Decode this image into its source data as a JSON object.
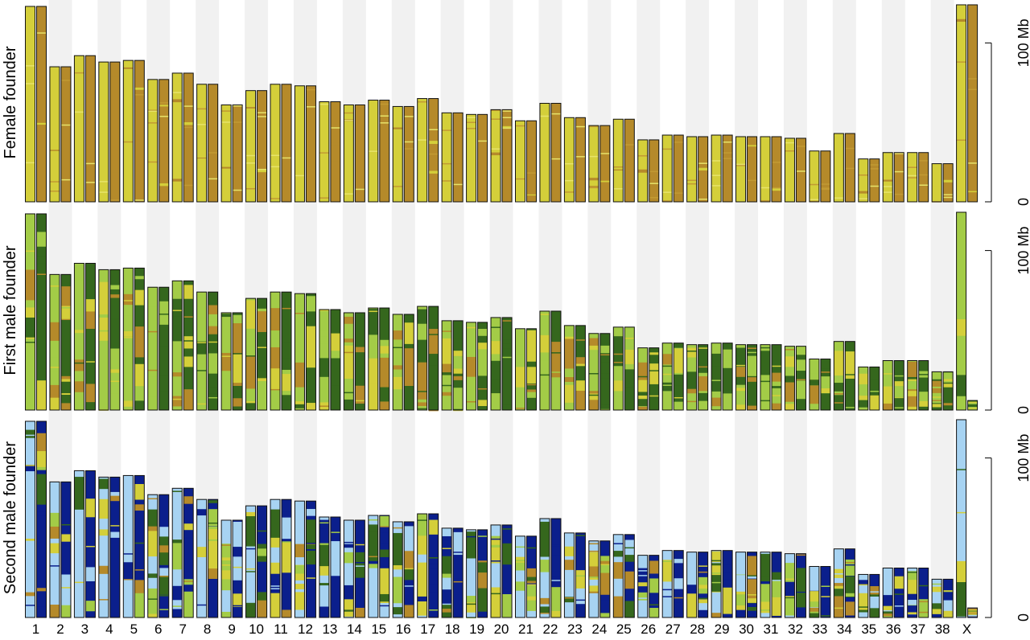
{
  "chart_data": {
    "type": "bar",
    "description_units": "Mb",
    "categories": [
      "1",
      "2",
      "3",
      "4",
      "5",
      "6",
      "7",
      "8",
      "9",
      "10",
      "11",
      "12",
      "13",
      "14",
      "15",
      "16",
      "17",
      "18",
      "19",
      "20",
      "21",
      "22",
      "23",
      "24",
      "25",
      "26",
      "27",
      "28",
      "29",
      "30",
      "31",
      "32",
      "33",
      "34",
      "35",
      "36",
      "37",
      "38",
      "X"
    ],
    "chromosome_lengths_mb": [
      123,
      85,
      92,
      88,
      89,
      77,
      81,
      74,
      61,
      70,
      74,
      73,
      63,
      61,
      64,
      60,
      65,
      56,
      55,
      58,
      51,
      62,
      53,
      48,
      52,
      39,
      42,
      41,
      42,
      41,
      41,
      40,
      32,
      43,
      27,
      31,
      31,
      24,
      124
    ],
    "y_axis": {
      "tick_labels": [
        "0",
        "100 Mb"
      ],
      "tick_values_mb": [
        0,
        100
      ],
      "ylim_mb": [
        0,
        125
      ]
    },
    "panels": [
      {
        "label": "Female founder",
        "palette": [
          "#d4cf3a",
          "#b58a2a"
        ],
        "x_short_haplotype": false
      },
      {
        "label": "First male founder",
        "palette": [
          "#a3cc47",
          "#35671d",
          "#b58a2a",
          "#d4cf3a"
        ],
        "x_short_haplotype": true
      },
      {
        "label": "Second male founder",
        "palette": [
          "#a7d3f2",
          "#0b1f8c",
          "#a3cc47",
          "#35671d",
          "#d4cf3a",
          "#b58a2a"
        ],
        "x_short_haplotype": true
      }
    ],
    "legend": "none",
    "grid": false
  }
}
